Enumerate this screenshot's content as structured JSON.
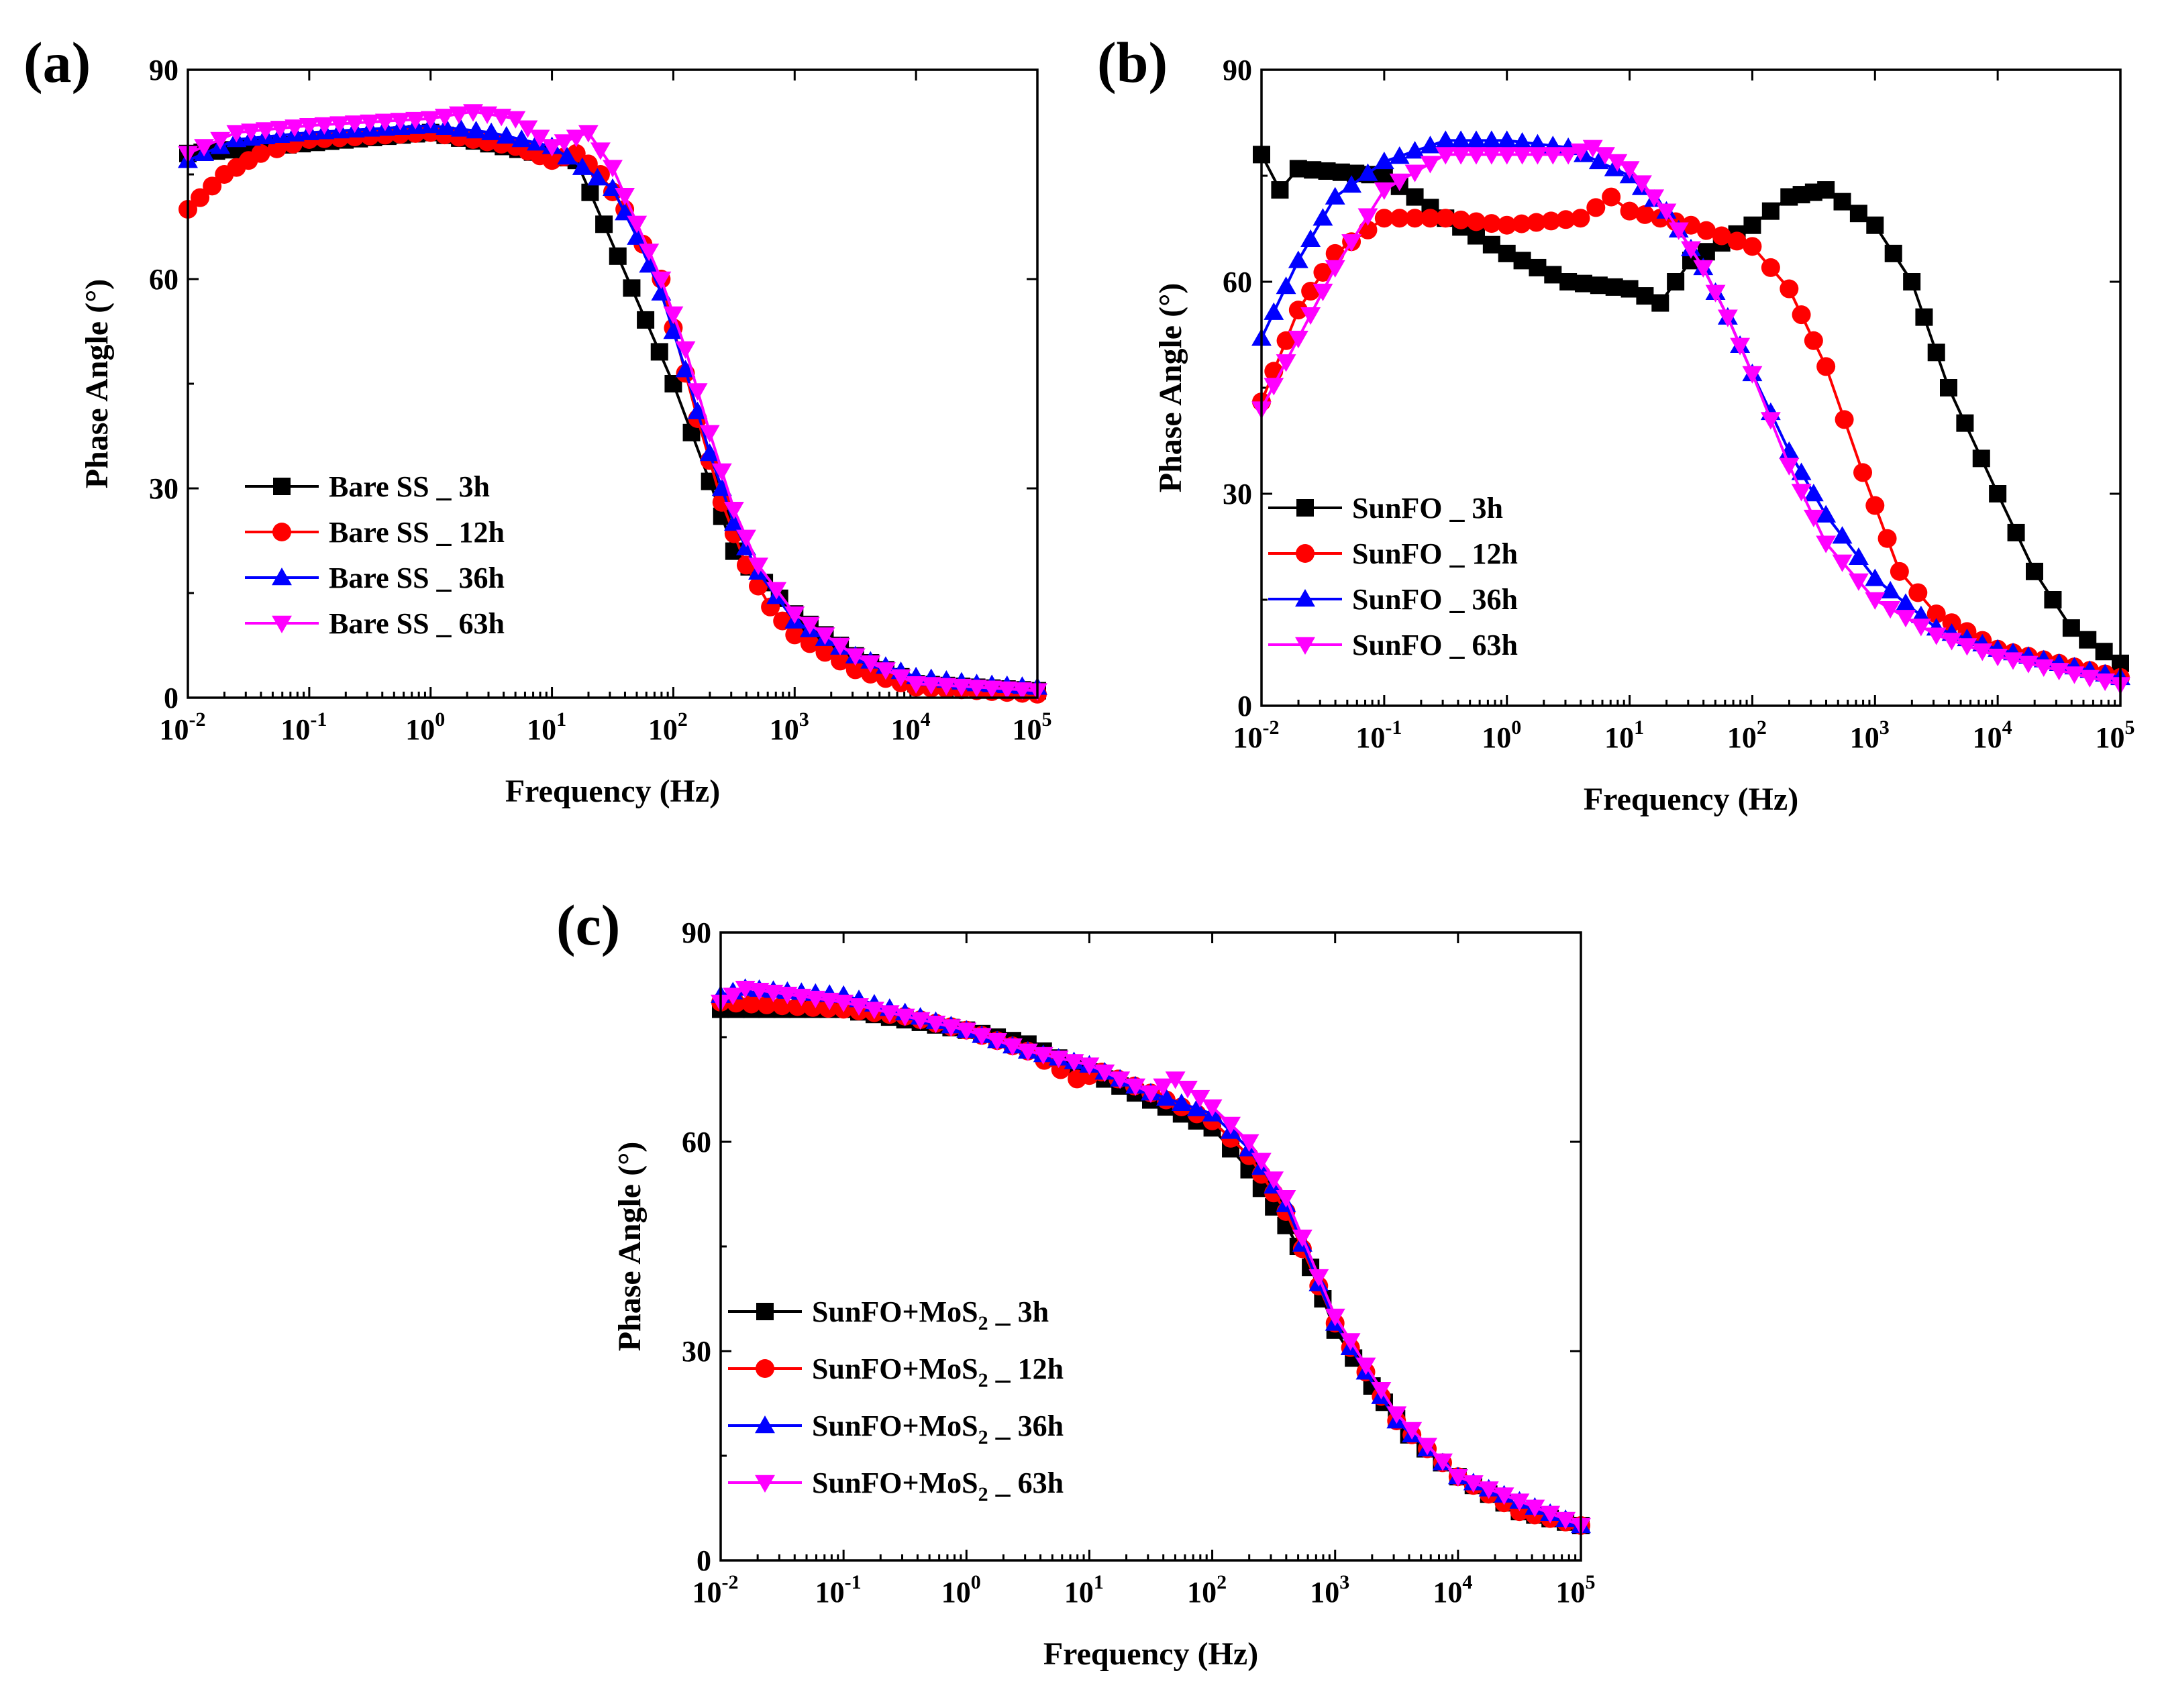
{
  "chart_data": [
    {
      "id": "a",
      "type": "line",
      "panel_label": "(a)",
      "xlabel": "Frequency (Hz)",
      "ylabel": "Phase Angle (°)",
      "xscale": "log",
      "xlim": [
        0.01,
        100000
      ],
      "ylim": [
        0,
        90
      ],
      "yticks": [
        "0",
        "30",
        "60",
        "90"
      ],
      "xticks": [
        {
          "base": "10",
          "exp": "-2"
        },
        {
          "base": "10",
          "exp": "-1"
        },
        {
          "base": "10",
          "exp": "0"
        },
        {
          "base": "10",
          "exp": "1"
        },
        {
          "base": "10",
          "exp": "2"
        },
        {
          "base": "10",
          "exp": "3"
        },
        {
          "base": "10",
          "exp": "4"
        },
        {
          "base": "10",
          "exp": "5"
        }
      ],
      "legend_position": "center-left",
      "series": [
        {
          "name": "Bare SS _ 3h",
          "legend": {
            "pre": "Bare SS _ 3h"
          },
          "color": "#000000",
          "marker": "square",
          "logf": [
            -2,
            0.0,
            1.2,
            2.0,
            2.3,
            2.5,
            3.0,
            3.5,
            4.0,
            5.0
          ],
          "phase": [
            78,
            81,
            77,
            45,
            31,
            21,
            12,
            6,
            2,
            1
          ]
        },
        {
          "name": "Bare SS _ 12h",
          "legend": {
            "pre": "Bare SS _ 12h"
          },
          "color": "#ff0000",
          "marker": "circle",
          "logf": [
            -2,
            -1.7,
            -1.4,
            -1.0,
            0.0,
            0.7,
            1.0,
            1.2,
            1.4,
            1.6,
            1.9,
            2.0,
            2.2,
            2.4,
            2.6,
            2.8,
            3.0,
            3.5,
            4.0,
            5.0
          ],
          "phase": [
            70,
            75,
            78,
            80,
            81,
            79,
            77,
            78,
            75,
            70,
            60,
            53,
            40,
            28,
            19,
            13,
            9,
            4,
            1.5,
            0.5
          ]
        },
        {
          "name": "Bare SS _ 36h",
          "legend": {
            "pre": "Bare SS _ 36h"
          },
          "color": "#0000ff",
          "marker": "triangle-up",
          "logf": [
            -2,
            -1.6,
            -1.0,
            0.0,
            0.5,
            1.0,
            1.25,
            1.5,
            1.7,
            1.9,
            2.1,
            2.3,
            2.5,
            2.7,
            3.0,
            3.5,
            4.0,
            4.5,
            5.0
          ],
          "phase": [
            77,
            80,
            81,
            82,
            81,
            79,
            76,
            73,
            66,
            58,
            47,
            35,
            25,
            18,
            11,
            6,
            3,
            2,
            1.5
          ]
        },
        {
          "name": "Bare SS _ 63h",
          "legend": {
            "pre": "Bare SS _ 63h"
          },
          "color": "#ff00ff",
          "marker": "triangle-down",
          "logf": [
            -2,
            -1.6,
            -1.0,
            0.0,
            0.35,
            0.7,
            1.0,
            1.3,
            1.5,
            1.7,
            1.9,
            2.1,
            2.3,
            2.5,
            2.7,
            3.0,
            3.5,
            4.0,
            5.0
          ],
          "phase": [
            78,
            81,
            82,
            83,
            84,
            83,
            79,
            81,
            76,
            68,
            60,
            50,
            38,
            27,
            19,
            12,
            6,
            2,
            1
          ]
        }
      ]
    },
    {
      "id": "b",
      "type": "line",
      "panel_label": "(b)",
      "xlabel": "Frequency (Hz)",
      "ylabel": "Phase Angle (°)",
      "xscale": "log",
      "xlim": [
        0.01,
        100000
      ],
      "ylim": [
        0,
        90
      ],
      "yticks": [
        "0",
        "30",
        "60",
        "90"
      ],
      "xticks": [
        {
          "base": "10",
          "exp": "-2"
        },
        {
          "base": "10",
          "exp": "-1"
        },
        {
          "base": "10",
          "exp": "0"
        },
        {
          "base": "10",
          "exp": "1"
        },
        {
          "base": "10",
          "exp": "2"
        },
        {
          "base": "10",
          "exp": "3"
        },
        {
          "base": "10",
          "exp": "4"
        },
        {
          "base": "10",
          "exp": "5"
        }
      ],
      "legend_position": "center-left",
      "series": [
        {
          "name": "SunFO _ 3h",
          "legend": {
            "pre": "SunFO _ 3h"
          },
          "color": "#000000",
          "marker": "square",
          "logf": [
            -2,
            -1.85,
            -1.7,
            -1.0,
            -0.5,
            0.0,
            0.5,
            1.0,
            1.25,
            1.5,
            2.0,
            2.3,
            2.6,
            3.0,
            3.3,
            3.6,
            4.0,
            4.3,
            4.6,
            5.0
          ],
          "phase": [
            78,
            73,
            76,
            75,
            69,
            64,
            60,
            59,
            57,
            63,
            68,
            72,
            73,
            68,
            60,
            45,
            30,
            19,
            11,
            6
          ]
        },
        {
          "name": "SunFO _ 12h",
          "legend": {
            "pre": "SunFO _ 12h"
          },
          "color": "#ff0000",
          "marker": "circle",
          "logf": [
            -2,
            -1.7,
            -1.4,
            -1.0,
            -0.5,
            0.0,
            0.6,
            0.85,
            1.0,
            1.5,
            2.0,
            2.3,
            2.6,
            2.9,
            3.2,
            3.5,
            4.0,
            4.5,
            5.0
          ],
          "phase": [
            43,
            56,
            64,
            69,
            69,
            68,
            69,
            72,
            70,
            68,
            65,
            59,
            48,
            33,
            19,
            13,
            8,
            6,
            4
          ]
        },
        {
          "name": "SunFO _ 36h",
          "legend": {
            "pre": "SunFO _ 36h"
          },
          "color": "#0000ff",
          "marker": "triangle-up",
          "logf": [
            -2,
            -1.7,
            -1.4,
            -1.0,
            -0.5,
            0.0,
            0.5,
            1.0,
            1.3,
            1.6,
            1.8,
            2.0,
            2.3,
            2.6,
            3.0,
            3.5,
            4.0,
            5.0
          ],
          "phase": [
            52,
            63,
            72,
            77,
            80,
            80,
            79,
            75,
            70,
            62,
            55,
            47,
            36,
            27,
            18,
            11,
            8,
            4
          ]
        },
        {
          "name": "SunFO _ 63h",
          "legend": {
            "pre": "SunFO _ 63h"
          },
          "color": "#ff00ff",
          "marker": "triangle-down",
          "logf": [
            -2,
            -1.7,
            -1.4,
            -1.0,
            -0.5,
            0.0,
            0.5,
            0.7,
            1.0,
            1.3,
            1.6,
            1.8,
            2.0,
            2.3,
            2.6,
            3.0,
            3.5,
            4.0,
            5.0
          ],
          "phase": [
            42,
            52,
            62,
            73,
            78,
            78,
            78,
            79,
            76,
            70,
            62,
            55,
            47,
            34,
            23,
            15,
            10,
            7,
            3
          ]
        }
      ]
    },
    {
      "id": "c",
      "type": "line",
      "panel_label": "(c)",
      "xlabel": "Frequency (Hz)",
      "ylabel": "Phase Angle (°)",
      "xscale": "log",
      "xlim": [
        0.01,
        100000
      ],
      "ylim": [
        0,
        90
      ],
      "yticks": [
        "0",
        "30",
        "60",
        "90"
      ],
      "xticks": [
        {
          "base": "10",
          "exp": "-2"
        },
        {
          "base": "10",
          "exp": "-1"
        },
        {
          "base": "10",
          "exp": "0"
        },
        {
          "base": "10",
          "exp": "1"
        },
        {
          "base": "10",
          "exp": "2"
        },
        {
          "base": "10",
          "exp": "3"
        },
        {
          "base": "10",
          "exp": "4"
        },
        {
          "base": "10",
          "exp": "5"
        }
      ],
      "legend_position": "center-left",
      "series": [
        {
          "name": "SunFO+MoS2 _ 3h",
          "legend": {
            "pre": "SunFO+MoS",
            "sub": "2",
            "post": " _ 3h"
          },
          "color": "#000000",
          "marker": "square",
          "logf": [
            -2,
            -1.0,
            0.0,
            0.5,
            1.0,
            1.5,
            2.0,
            2.3,
            2.6,
            2.8,
            3.0,
            3.3,
            3.6,
            4.0,
            4.5,
            5.0
          ],
          "phase": [
            79,
            79,
            76,
            74,
            70,
            66,
            62,
            56,
            48,
            42,
            33,
            25,
            18,
            12,
            7,
            5
          ]
        },
        {
          "name": "SunFO+MoS2 _ 12h",
          "legend": {
            "pre": "SunFO+MoS",
            "sub": "2",
            "post": " _ 12h"
          },
          "color": "#ff0000",
          "marker": "circle",
          "logf": [
            -2,
            -1.0,
            -0.5,
            0.0,
            0.5,
            0.9,
            1.1,
            1.5,
            2.0,
            2.3,
            2.6,
            3.0,
            3.5,
            4.0,
            4.5,
            5.0
          ],
          "phase": [
            80,
            79,
            78,
            76,
            73,
            69,
            70,
            67,
            63,
            58,
            50,
            34,
            20,
            12,
            7,
            5
          ]
        },
        {
          "name": "SunFO+MoS2 _ 36h",
          "legend": {
            "pre": "SunFO+MoS",
            "sub": "2",
            "post": " _ 36h"
          },
          "color": "#0000ff",
          "marker": "triangle-up",
          "logf": [
            -2,
            -1.8,
            -1.0,
            0.0,
            0.5,
            1.0,
            1.5,
            2.0,
            2.3,
            2.6,
            3.0,
            3.5,
            4.0,
            5.0
          ],
          "phase": [
            81,
            82,
            81,
            76,
            73,
            71,
            67,
            64,
            59,
            51,
            34,
            20,
            12,
            5
          ]
        },
        {
          "name": "SunFO+MoS2 _ 63h",
          "legend": {
            "pre": "SunFO+MoS",
            "sub": "2",
            "post": " _ 63h"
          },
          "color": "#ff00ff",
          "marker": "triangle-down",
          "logf": [
            -2,
            -1.8,
            -1.0,
            0.0,
            0.5,
            1.0,
            1.5,
            1.7,
            2.0,
            2.3,
            2.6,
            3.0,
            3.5,
            4.0,
            5.0
          ],
          "phase": [
            80,
            82,
            80,
            76,
            73,
            71,
            67,
            69,
            65,
            60,
            52,
            35,
            21,
            12,
            5
          ]
        }
      ]
    }
  ]
}
